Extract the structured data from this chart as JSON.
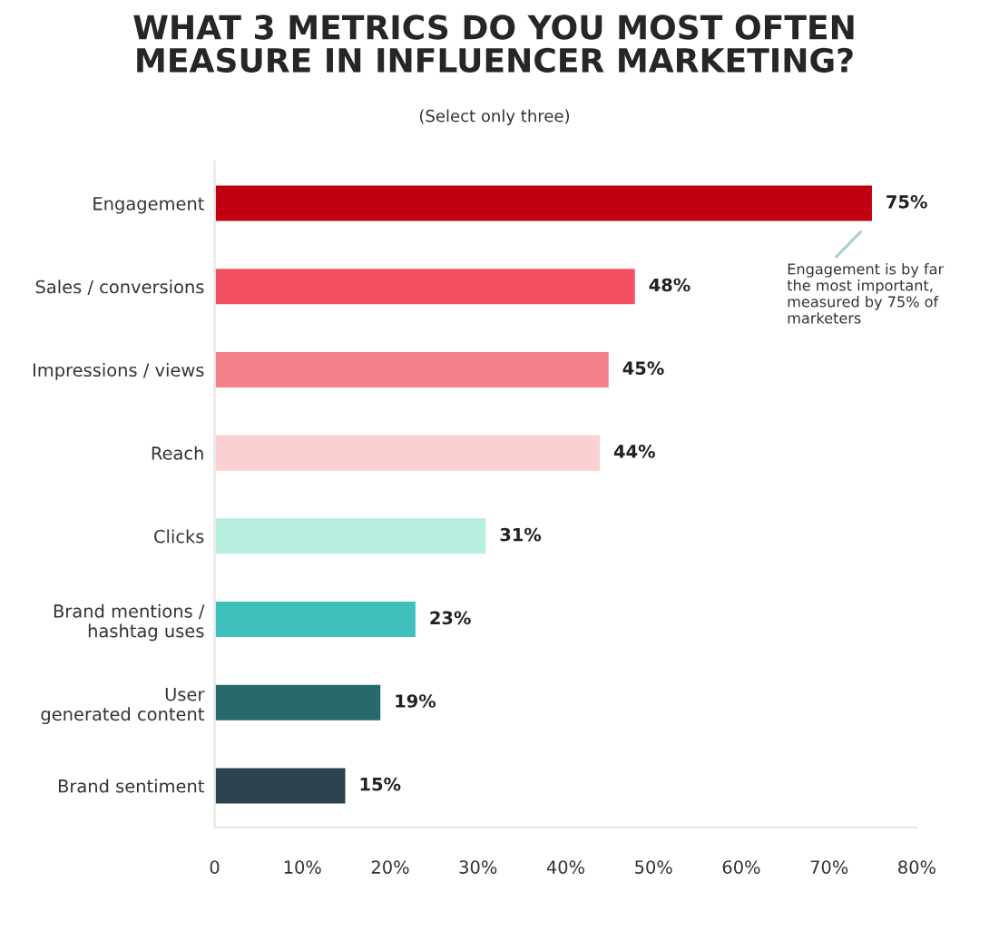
{
  "chart_data": {
    "type": "bar",
    "orientation": "horizontal",
    "title": "WHAT 3 METRICS DO YOU MOST OFTEN\nMEASURE IN INFLUENCER MARKETING?",
    "subtitle": "(Select only three)",
    "categories": [
      "Engagement",
      "Sales / conversions",
      "Impressions / views",
      "Reach",
      "Clicks",
      "Brand mentions /\nhashtag uses",
      "User\ngenerated content",
      "Brand sentiment"
    ],
    "values": [
      75,
      48,
      45,
      44,
      31,
      23,
      19,
      15
    ],
    "colors": [
      "#c00010",
      "#f45064",
      "#f57f8a",
      "#fad1d0",
      "#b8efe0",
      "#40c0bd",
      "#27696b",
      "#2c424e"
    ],
    "value_labels": [
      "75%",
      "48%",
      "45%",
      "44%",
      "31%",
      "23%",
      "19%",
      "15%"
    ],
    "xlim": [
      0,
      80
    ],
    "xticks": [
      {
        "value": 0,
        "label": "0"
      },
      {
        "value": 10,
        "label": "10%"
      },
      {
        "value": 20,
        "label": "20%"
      },
      {
        "value": 30,
        "label": "30%"
      },
      {
        "value": 40,
        "label": "40%"
      },
      {
        "value": 50,
        "label": "50%"
      },
      {
        "value": 60,
        "label": "60%"
      },
      {
        "value": 70,
        "label": "70%"
      },
      {
        "value": 80,
        "label": "80%"
      }
    ],
    "grid": false,
    "annotations": [
      "Engagement is by far\nthe most important,\nmeasured by 75% of\nmarketers"
    ]
  }
}
